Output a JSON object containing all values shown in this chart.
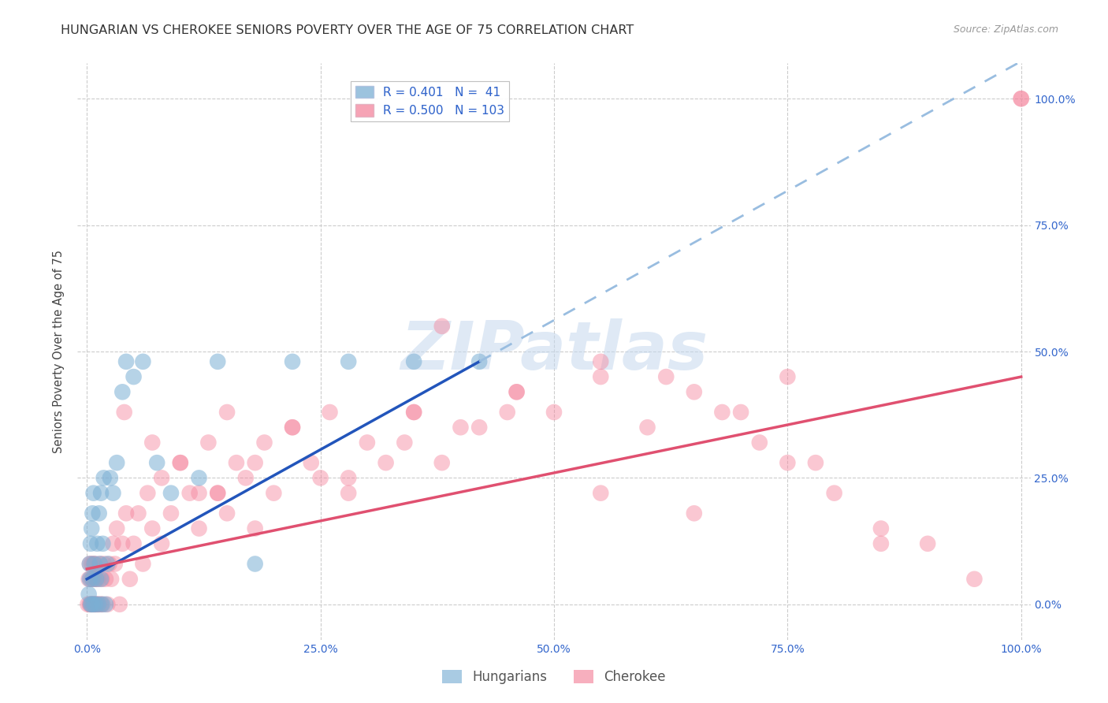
{
  "title": "HUNGARIAN VS CHEROKEE SENIORS POVERTY OVER THE AGE OF 75 CORRELATION CHART",
  "source": "Source: ZipAtlas.com",
  "ylabel": "Seniors Poverty Over the Age of 75",
  "xlabel": "",
  "xlim": [
    -0.01,
    1.01
  ],
  "ylim": [
    -0.07,
    1.07
  ],
  "yticks": [
    0,
    0.25,
    0.5,
    0.75,
    1.0
  ],
  "xticks": [
    0,
    0.25,
    0.5,
    0.75,
    1.0
  ],
  "tick_labels": [
    "0.0%",
    "25.0%",
    "50.0%",
    "75.0%",
    "100.0%"
  ],
  "hungarian_color": "#7bafd4",
  "cherokee_color": "#f4849c",
  "hungarian_line_color": "#2255bb",
  "cherokee_line_color": "#e05070",
  "dashed_line_color": "#99bde0",
  "watermark": "ZIPatlas",
  "title_fontsize": 11.5,
  "axis_label_fontsize": 10.5,
  "tick_fontsize": 10,
  "legend_fontsize": 11,
  "hu_x": [
    0.002,
    0.003,
    0.003,
    0.004,
    0.004,
    0.005,
    0.005,
    0.006,
    0.006,
    0.007,
    0.007,
    0.008,
    0.009,
    0.01,
    0.011,
    0.012,
    0.013,
    0.014,
    0.015,
    0.015,
    0.016,
    0.017,
    0.018,
    0.02,
    0.022,
    0.025,
    0.028,
    0.032,
    0.038,
    0.042,
    0.05,
    0.06,
    0.075,
    0.09,
    0.12,
    0.14,
    0.18,
    0.22,
    0.28,
    0.35,
    0.42
  ],
  "hu_y": [
    0.02,
    0.05,
    0.08,
    0.0,
    0.12,
    0.0,
    0.15,
    0.05,
    0.18,
    0.0,
    0.22,
    0.08,
    0.0,
    0.05,
    0.12,
    0.0,
    0.18,
    0.08,
    0.05,
    0.22,
    0.0,
    0.12,
    0.25,
    0.0,
    0.08,
    0.25,
    0.22,
    0.28,
    0.42,
    0.48,
    0.45,
    0.48,
    0.28,
    0.22,
    0.25,
    0.48,
    0.08,
    0.48,
    0.48,
    0.48,
    0.48
  ],
  "ch_x": [
    0.001,
    0.002,
    0.003,
    0.003,
    0.004,
    0.004,
    0.005,
    0.005,
    0.006,
    0.006,
    0.007,
    0.007,
    0.008,
    0.008,
    0.009,
    0.009,
    0.01,
    0.01,
    0.011,
    0.012,
    0.013,
    0.014,
    0.015,
    0.016,
    0.017,
    0.018,
    0.02,
    0.022,
    0.024,
    0.026,
    0.028,
    0.03,
    0.032,
    0.035,
    0.038,
    0.042,
    0.046,
    0.05,
    0.055,
    0.06,
    0.065,
    0.07,
    0.08,
    0.09,
    0.1,
    0.11,
    0.12,
    0.13,
    0.14,
    0.15,
    0.16,
    0.17,
    0.18,
    0.19,
    0.2,
    0.22,
    0.24,
    0.26,
    0.28,
    0.3,
    0.32,
    0.35,
    0.38,
    0.42,
    0.46,
    0.5,
    0.55,
    0.6,
    0.65,
    0.7,
    0.75,
    0.8,
    0.85,
    0.9,
    0.95,
    1.0,
    0.04,
    0.07,
    0.1,
    0.14,
    0.18,
    0.22,
    0.28,
    0.34,
    0.4,
    0.46,
    0.55,
    0.65,
    0.75,
    0.85,
    0.55,
    0.68,
    0.78,
    0.62,
    0.72,
    0.45,
    0.35,
    0.25,
    0.15,
    0.08,
    0.12,
    0.38,
    1.0
  ],
  "ch_y": [
    0.0,
    0.05,
    0.0,
    0.08,
    0.0,
    0.05,
    0.0,
    0.08,
    0.0,
    0.05,
    0.0,
    0.08,
    0.0,
    0.05,
    0.0,
    0.08,
    0.0,
    0.05,
    0.0,
    0.05,
    0.0,
    0.08,
    0.0,
    0.05,
    0.0,
    0.08,
    0.05,
    0.0,
    0.08,
    0.05,
    0.12,
    0.08,
    0.15,
    0.0,
    0.12,
    0.18,
    0.05,
    0.12,
    0.18,
    0.08,
    0.22,
    0.15,
    0.25,
    0.18,
    0.28,
    0.22,
    0.15,
    0.32,
    0.22,
    0.38,
    0.28,
    0.25,
    0.15,
    0.32,
    0.22,
    0.35,
    0.28,
    0.38,
    0.22,
    0.32,
    0.28,
    0.38,
    0.28,
    0.35,
    0.42,
    0.38,
    0.45,
    0.35,
    0.42,
    0.38,
    0.45,
    0.22,
    0.15,
    0.12,
    0.05,
    1.0,
    0.38,
    0.32,
    0.28,
    0.22,
    0.28,
    0.35,
    0.25,
    0.32,
    0.35,
    0.42,
    0.22,
    0.18,
    0.28,
    0.12,
    0.48,
    0.38,
    0.28,
    0.45,
    0.32,
    0.38,
    0.38,
    0.25,
    0.18,
    0.12,
    0.22,
    0.55,
    1.0
  ]
}
